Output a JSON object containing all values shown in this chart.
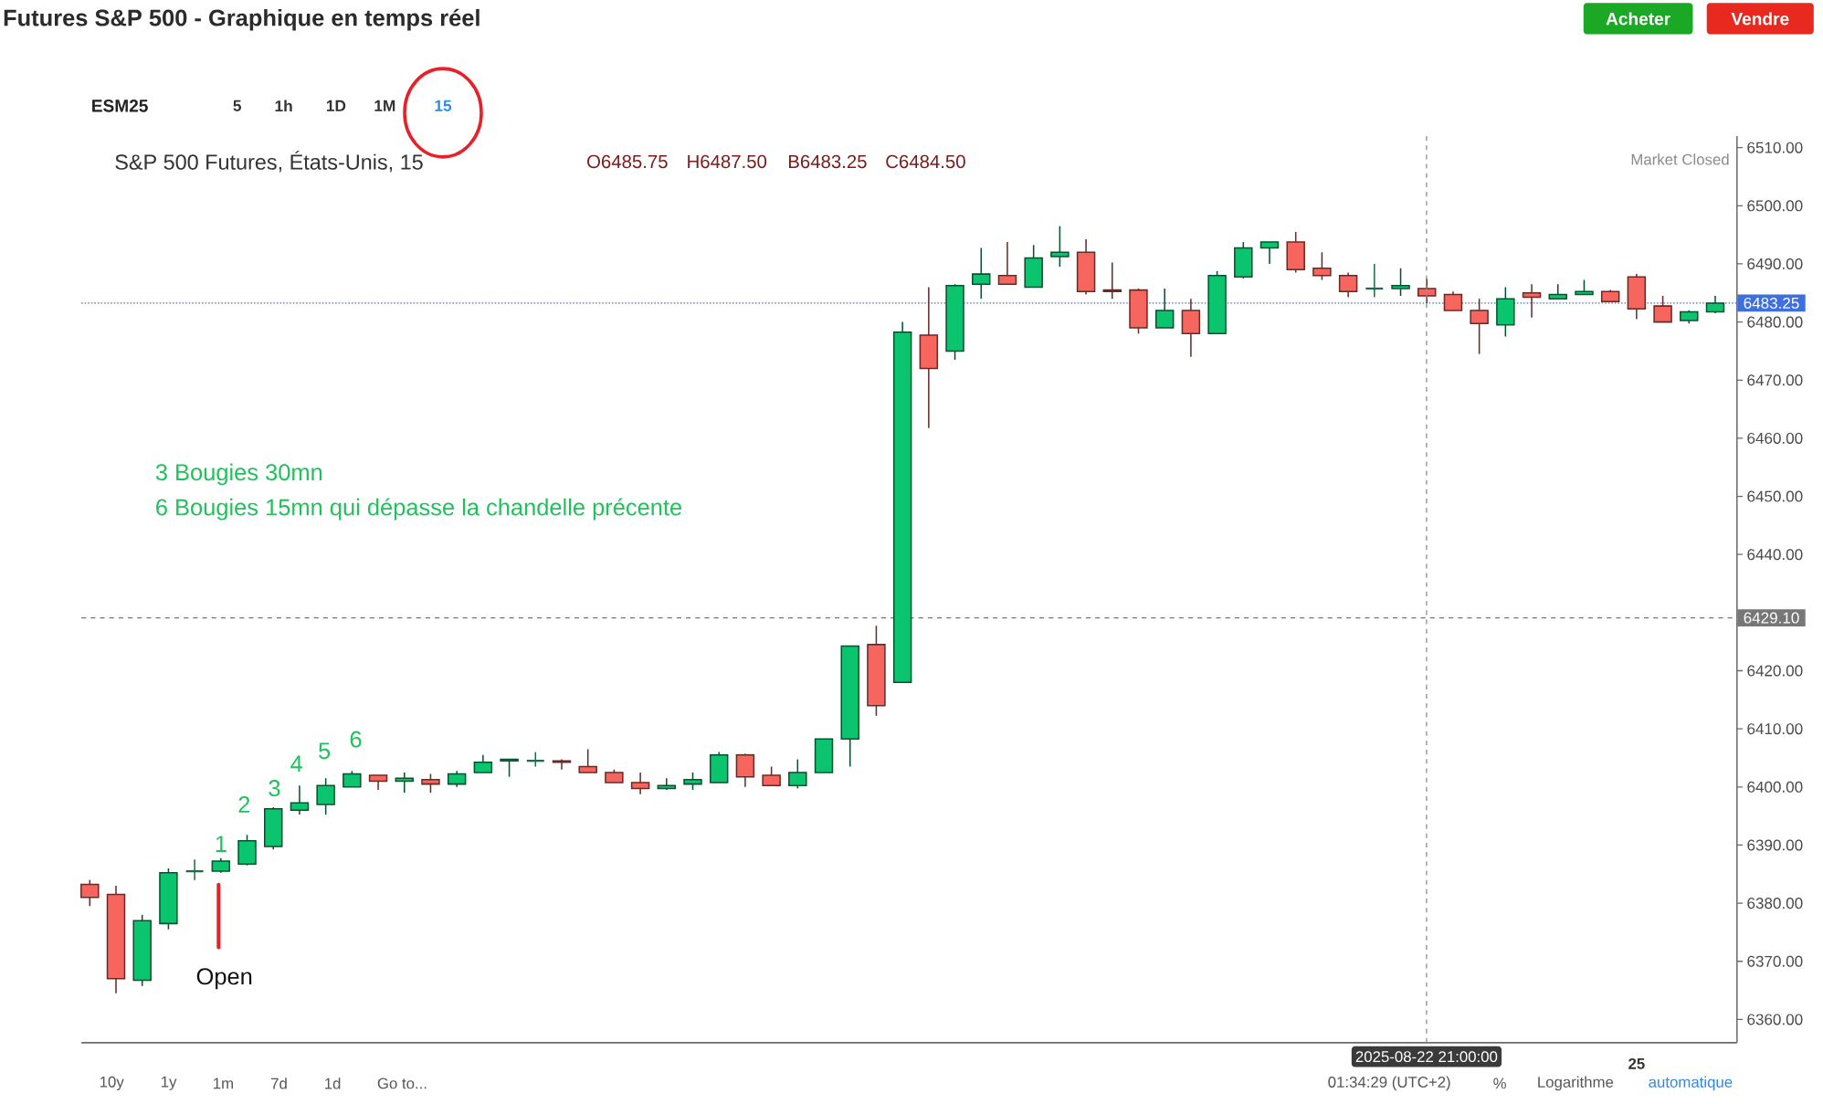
{
  "chart_data": {
    "type": "candlestick",
    "title": "Futures S&P 500 - Graphique en temps réel",
    "subtitle": "S&P 500 Futures, États-Unis, 15",
    "categories": [
      null,
      null,
      null,
      null,
      null,
      null,
      null,
      null,
      null,
      null,
      null,
      null,
      null,
      null,
      null,
      null,
      null,
      null,
      null,
      null,
      null,
      null,
      null,
      null,
      null,
      null,
      null,
      null,
      null,
      null,
      null,
      null,
      null,
      null,
      null,
      null,
      null,
      null,
      null,
      null,
      null,
      null,
      null,
      null,
      null,
      null,
      null,
      null,
      null,
      null,
      null,
      null,
      null,
      null,
      null,
      null,
      null,
      null,
      null,
      "25",
      null,
      null,
      null
    ],
    "ohlc": [
      [
        6383.25,
        6384,
        6379.5,
        6381
      ],
      [
        6381.5,
        6383,
        6364.5,
        6367
      ],
      [
        6366.75,
        6378,
        6365.75,
        6377
      ],
      [
        6376.5,
        6386,
        6375.5,
        6385.25
      ],
      [
        6385.5,
        6387.5,
        6384,
        6385.5
      ],
      [
        6385.5,
        6387.75,
        6385.25,
        6387.25
      ],
      [
        6386.75,
        6391.75,
        6386.5,
        6390.75
      ],
      [
        6389.75,
        6396.5,
        6389.25,
        6396.25
      ],
      [
        6396,
        6400.25,
        6395.25,
        6397.25
      ],
      [
        6397,
        6401.5,
        6395.25,
        6400.25
      ],
      [
        6400,
        6402.75,
        6400,
        6402.25
      ],
      [
        6402,
        6402,
        6399.5,
        6401
      ],
      [
        6401,
        6402.5,
        6399,
        6401.5
      ],
      [
        6401.25,
        6402.25,
        6399,
        6400.5
      ],
      [
        6400.5,
        6402.75,
        6400,
        6402.25
      ],
      [
        6402.5,
        6405.5,
        6402.5,
        6404.25
      ],
      [
        6404.5,
        6404.75,
        6401.75,
        6404.75
      ],
      [
        6404.5,
        6406,
        6403.5,
        6404.5
      ],
      [
        6404.5,
        6404.75,
        6403,
        6404.25
      ],
      [
        6403.5,
        6406.5,
        6402.5,
        6402.5
      ],
      [
        6402.5,
        6403,
        6400.75,
        6400.75
      ],
      [
        6400.75,
        6402.5,
        6398.75,
        6399.75
      ],
      [
        6399.75,
        6401.5,
        6399.5,
        6400.25
      ],
      [
        6400.5,
        6402.5,
        6399.5,
        6401.25
      ],
      [
        6400.75,
        6406,
        6400.75,
        6405.5
      ],
      [
        6405.5,
        6405.75,
        6400,
        6401.75
      ],
      [
        6402,
        6403.5,
        6400.25,
        6400.25
      ],
      [
        6400.25,
        6404.75,
        6399.75,
        6402.5
      ],
      [
        6402.5,
        6408.25,
        6402.5,
        6408.25
      ],
      [
        6408.25,
        6424.25,
        6403.5,
        6424.25
      ],
      [
        6424.5,
        6427.75,
        6412.25,
        6414
      ],
      [
        6418,
        6480,
        6418,
        6478.25
      ],
      [
        6477.75,
        6486,
        6461.75,
        6472
      ],
      [
        6475,
        6486.5,
        6473.5,
        6486.25
      ],
      [
        6486.5,
        6492.75,
        6484,
        6488.25
      ],
      [
        6488,
        6493.75,
        6486.5,
        6486.5
      ],
      [
        6486,
        6493.25,
        6486,
        6491
      ],
      [
        6491.25,
        6496.5,
        6489.5,
        6492
      ],
      [
        6492,
        6494.25,
        6484.75,
        6485.25
      ],
      [
        6485.5,
        6490.25,
        6484,
        6485.25
      ],
      [
        6485.5,
        6485.75,
        6478,
        6479
      ],
      [
        6479,
        6485.75,
        6479,
        6482
      ],
      [
        6482,
        6484,
        6474,
        6478
      ],
      [
        6478,
        6488.75,
        6478,
        6488
      ],
      [
        6487.75,
        6493.75,
        6487.5,
        6492.75
      ],
      [
        6492.75,
        6493.75,
        6490,
        6493.75
      ],
      [
        6493.75,
        6495.5,
        6488.5,
        6489
      ],
      [
        6489.25,
        6492,
        6487.25,
        6488
      ],
      [
        6488,
        6488.5,
        6484.25,
        6485.25
      ],
      [
        6485.75,
        6490,
        6484.25,
        6485.75
      ],
      [
        6485.75,
        6489.25,
        6484.5,
        6486.25
      ],
      [
        6485.75,
        6487.5,
        6483.25,
        6484.5
      ],
      [
        6484.75,
        6485.25,
        6482,
        6482
      ],
      [
        6482,
        6484,
        6474.5,
        6479.75
      ],
      [
        6479.5,
        6486,
        6477.5,
        6484
      ],
      [
        6485,
        6486.5,
        6480.75,
        6484.25
      ],
      [
        6484,
        6486.5,
        6484,
        6484.75
      ],
      [
        6484.75,
        6487.25,
        6484.75,
        6485.25
      ],
      [
        6485.25,
        6485.5,
        6483.5,
        6483.5
      ],
      [
        6487.75,
        6488.25,
        6480.5,
        6482.25
      ],
      [
        6482.75,
        6484.5,
        6480,
        6480
      ],
      [
        6480.25,
        6482,
        6479.75,
        6481.75
      ],
      [
        6481.75,
        6484.5,
        6481.5,
        6483.25
      ]
    ],
    "colors": [
      "#f6665e",
      "#f6665e",
      "#0bc46e",
      "#0bc46e",
      "#1f6b47",
      "#0bc46e",
      "#0bc46e",
      "#0bc46e",
      "#0bc46e",
      "#0bc46e",
      "#0bc46e",
      "#f6665e",
      "#0bc46e",
      "#f6665e",
      "#0bc46e",
      "#0bc46e",
      "#0bc46e",
      "#1f6b47",
      "#f6665e",
      "#f6665e",
      "#f6665e",
      "#f6665e",
      "#0bc46e",
      "#0bc46e",
      "#0bc46e",
      "#f6665e",
      "#f6665e",
      "#0bc46e",
      "#0bc46e",
      "#0bc46e",
      "#f6665e",
      "#0bc46e",
      "#f6665e",
      "#0bc46e",
      "#0bc46e",
      "#f6665e",
      "#0bc46e",
      "#0bc46e",
      "#f6665e",
      "#f6665e",
      "#f6665e",
      "#0bc46e",
      "#f6665e",
      "#0bc46e",
      "#0bc46e",
      "#0bc46e",
      "#f6665e",
      "#f6665e",
      "#f6665e",
      "#1f6b47",
      "#0bc46e",
      "#f6665e",
      "#f6665e",
      "#f6665e",
      "#0bc46e",
      "#f6665e",
      "#0bc46e",
      "#0bc46e",
      "#f6665e",
      "#f6665e",
      "#f6665e",
      "#0bc46e",
      "#0bc46e"
    ],
    "ylim": [
      6356,
      6512
    ],
    "yticks": [
      {
        "value": 6360,
        "label": "6360.00"
      },
      {
        "value": 6370,
        "label": "6370.00"
      },
      {
        "value": 6380,
        "label": "6380.00"
      },
      {
        "value": 6390,
        "label": "6390.00"
      },
      {
        "value": 6400,
        "label": "6400.00"
      },
      {
        "value": 6410,
        "label": "6410.00"
      },
      {
        "value": 6420,
        "label": "6420.00"
      },
      {
        "value": 6440,
        "label": "6440.00"
      },
      {
        "value": 6450,
        "label": "6450.00"
      },
      {
        "value": 6460,
        "label": "6460.00"
      },
      {
        "value": 6470,
        "label": "6470.00"
      },
      {
        "value": 6480,
        "label": "6480.00"
      },
      {
        "value": 6490,
        "label": "6490.00"
      },
      {
        "value": 6500,
        "label": "6500.00"
      },
      {
        "value": 6510,
        "label": "6510.00"
      }
    ],
    "ref_lines": [
      {
        "axis": "y",
        "value": 6483.25,
        "label": "6483.25",
        "color": "#3e6fe0",
        "line_style": "dotted"
      },
      {
        "axis": "y",
        "value": 6429.1,
        "label": "6429.10",
        "color": "#777777",
        "line_style": "dashed"
      }
    ],
    "annotations": [
      "3 Bougies 30mn",
      "6 Bougies 15mn qui dépasse la chandelle précente",
      "1",
      "2",
      "3",
      "4",
      "5",
      "6",
      "Open",
      "Market Closed",
      "O6485.75",
      "H6487.50",
      "B6483.25",
      "C6484.50",
      "Acheter",
      "Vendre",
      "ESM25",
      "5",
      "1h",
      "1D",
      "1M",
      "15",
      "10y",
      "1y",
      "1m",
      "7d",
      "1d",
      "Go to...",
      "01:34:29 (UTC+2)",
      "%",
      "Logarithme",
      "automatique",
      "2025-08-22 21:00:00"
    ]
  }
}
